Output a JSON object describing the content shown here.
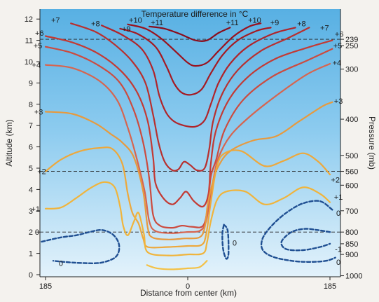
{
  "chart_data": {
    "type": "contour",
    "title": "Temperature difference in °C",
    "xlabel": "Distance from center (km)",
    "ylabel_left": "Altitude (km)",
    "ylabel_right": "Pressure (mb)",
    "x_ticks": [
      "185",
      "0",
      "185"
    ],
    "x_range_km": [
      -200,
      200
    ],
    "y_range_km": [
      0,
      12.5
    ],
    "y_ticks": [
      0,
      1,
      2,
      3,
      4,
      5,
      6,
      7,
      8,
      9,
      10,
      11,
      12
    ],
    "pressure_ticks": [
      {
        "mb": "239",
        "alt": 11.05
      },
      {
        "mb": "250",
        "alt": 10.75
      },
      {
        "mb": "300",
        "alt": 9.65
      },
      {
        "mb": "400",
        "alt": 7.3
      },
      {
        "mb": "500",
        "alt": 5.6
      },
      {
        "mb": "560",
        "alt": 4.85
      },
      {
        "mb": "600",
        "alt": 4.2
      },
      {
        "mb": "700",
        "alt": 3.0
      },
      {
        "mb": "800",
        "alt": 2.0
      },
      {
        "mb": "850",
        "alt": 1.45
      },
      {
        "mb": "900",
        "alt": 0.95
      },
      {
        "mb": "1000",
        "alt": -0.05
      }
    ],
    "reference_lines_alt": [
      11.05,
      4.85,
      2.0
    ],
    "contours": [
      {
        "level": "+11",
        "color": "#8a0d1c",
        "points": [
          [
            -50,
            11.65
          ],
          [
            -30,
            11.55
          ],
          [
            -10,
            11.3
          ],
          [
            10,
            11.0
          ],
          [
            25,
            11.0
          ],
          [
            40,
            11.35
          ],
          [
            55,
            11.6
          ]
        ]
      },
      {
        "level": "+10",
        "color": "#9a121e",
        "points": [
          [
            -78,
            11.75
          ],
          [
            -55,
            11.55
          ],
          [
            -35,
            11.1
          ],
          [
            -15,
            10.45
          ],
          [
            0,
            9.95
          ],
          [
            10,
            9.8
          ],
          [
            25,
            9.95
          ],
          [
            40,
            10.5
          ],
          [
            60,
            11.2
          ],
          [
            80,
            11.65
          ],
          [
            95,
            11.8
          ]
        ]
      },
      {
        "level": "+9",
        "color": "#a51a22",
        "points": [
          [
            -88,
            11.55
          ],
          [
            -65,
            11.3
          ],
          [
            -42,
            10.7
          ],
          [
            -28,
            9.8
          ],
          [
            -18,
            9.0
          ],
          [
            -8,
            8.55
          ],
          [
            5,
            8.45
          ],
          [
            18,
            8.7
          ],
          [
            30,
            9.45
          ],
          [
            45,
            10.3
          ],
          [
            65,
            11.0
          ],
          [
            90,
            11.45
          ],
          [
            108,
            11.6
          ]
        ]
      },
      {
        "level": "+8",
        "color": "#b0242a",
        "points": [
          [
            -112,
            11.7
          ],
          [
            -85,
            11.25
          ],
          [
            -60,
            10.6
          ],
          [
            -45,
            9.6
          ],
          [
            -37,
            8.4
          ],
          [
            -28,
            7.6
          ],
          [
            -18,
            7.2
          ],
          [
            -5,
            7.0
          ],
          [
            10,
            6.95
          ],
          [
            22,
            7.25
          ],
          [
            30,
            8.0
          ],
          [
            40,
            9.0
          ],
          [
            55,
            9.9
          ],
          [
            78,
            10.7
          ],
          [
            110,
            11.3
          ],
          [
            140,
            11.6
          ]
        ]
      },
      {
        "level": "+7",
        "color": "#b8302f",
        "points": [
          [
            -152,
            11.8
          ],
          [
            -120,
            11.4
          ],
          [
            -95,
            10.8
          ],
          [
            -72,
            10.0
          ],
          [
            -55,
            9.0
          ],
          [
            -45,
            7.5
          ],
          [
            -38,
            6.2
          ],
          [
            -30,
            5.3
          ],
          [
            -20,
            4.9
          ],
          [
            -12,
            4.95
          ],
          [
            -5,
            5.3
          ],
          [
            3,
            5.15
          ],
          [
            12,
            4.9
          ],
          [
            22,
            5.0
          ],
          [
            28,
            5.9
          ],
          [
            33,
            7.2
          ],
          [
            45,
            8.5
          ],
          [
            65,
            9.6
          ],
          [
            95,
            10.5
          ],
          [
            130,
            11.1
          ],
          [
            158,
            11.6
          ]
        ]
      },
      {
        "level": "+6",
        "color": "#c33a34",
        "points": [
          [
            -185,
            11.2
          ],
          [
            -150,
            10.9
          ],
          [
            -115,
            10.35
          ],
          [
            -85,
            9.5
          ],
          [
            -65,
            8.5
          ],
          [
            -52,
            7.2
          ],
          [
            -45,
            5.5
          ],
          [
            -42,
            4.3
          ],
          [
            -32,
            3.6
          ],
          [
            -20,
            3.3
          ],
          [
            -10,
            3.6
          ],
          [
            -2,
            3.9
          ],
          [
            8,
            3.45
          ],
          [
            20,
            3.2
          ],
          [
            27,
            3.8
          ],
          [
            30,
            5.2
          ],
          [
            37,
            6.8
          ],
          [
            55,
            8.3
          ],
          [
            82,
            9.4
          ],
          [
            115,
            10.15
          ],
          [
            155,
            10.65
          ],
          [
            188,
            11.0
          ]
        ]
      },
      {
        "level": "+5",
        "color": "#cc4b3f",
        "points": [
          [
            -185,
            10.7
          ],
          [
            -150,
            10.4
          ],
          [
            -115,
            9.8
          ],
          [
            -88,
            9.0
          ],
          [
            -70,
            7.7
          ],
          [
            -58,
            6.2
          ],
          [
            -50,
            4.5
          ],
          [
            -45,
            2.8
          ],
          [
            -36,
            2.3
          ],
          [
            -20,
            2.2
          ],
          [
            -8,
            2.3
          ],
          [
            5,
            2.25
          ],
          [
            20,
            2.3
          ],
          [
            26,
            3.2
          ],
          [
            30,
            4.6
          ],
          [
            37,
            5.4
          ],
          [
            48,
            6.8
          ],
          [
            72,
            8.2
          ],
          [
            110,
            9.3
          ],
          [
            155,
            10.05
          ],
          [
            188,
            10.6
          ]
        ]
      },
      {
        "level": "+4",
        "color": "#d66550",
        "points": [
          [
            -185,
            9.85
          ],
          [
            -150,
            9.7
          ],
          [
            -115,
            9.1
          ],
          [
            -92,
            8.2
          ],
          [
            -78,
            6.9
          ],
          [
            -66,
            5.4
          ],
          [
            -56,
            3.9
          ],
          [
            -50,
            2.5
          ],
          [
            -42,
            2.05
          ],
          [
            -22,
            1.95
          ],
          [
            -2,
            2.0
          ],
          [
            15,
            2.05
          ],
          [
            23,
            2.4
          ],
          [
            28,
            3.3
          ],
          [
            34,
            4.6
          ],
          [
            40,
            5.5
          ],
          [
            55,
            6.5
          ],
          [
            80,
            7.4
          ],
          [
            115,
            8.4
          ],
          [
            155,
            9.4
          ],
          [
            185,
            9.9
          ]
        ]
      },
      {
        "level": "+3",
        "color": "#e79a3e",
        "points": [
          [
            -185,
            7.65
          ],
          [
            -150,
            7.55
          ],
          [
            -120,
            7.1
          ],
          [
            -100,
            6.6
          ],
          [
            -85,
            6.2
          ],
          [
            -70,
            5.5
          ],
          [
            -58,
            3.9
          ],
          [
            -52,
            2.2
          ],
          [
            -46,
            1.75
          ],
          [
            -25,
            1.65
          ],
          [
            -5,
            1.7
          ],
          [
            15,
            1.75
          ],
          [
            22,
            2.2
          ],
          [
            26,
            3.3
          ],
          [
            33,
            4.4
          ],
          [
            40,
            5.1
          ],
          [
            55,
            5.8
          ],
          [
            85,
            6.3
          ],
          [
            115,
            6.5
          ],
          [
            145,
            7.2
          ],
          [
            175,
            7.9
          ],
          [
            188,
            8.1
          ]
        ]
      },
      {
        "level": "+2",
        "color": "#eda83c",
        "points": [
          [
            -185,
            4.85
          ],
          [
            -165,
            5.4
          ],
          [
            -140,
            5.8
          ],
          [
            -115,
            5.95
          ],
          [
            -98,
            5.9
          ],
          [
            -85,
            5.2
          ],
          [
            -78,
            3.8
          ],
          [
            -72,
            2.9
          ],
          [
            -64,
            2.4
          ],
          [
            -58,
            1.7
          ],
          [
            -52,
            1.3
          ],
          [
            -25,
            1.3
          ],
          [
            0,
            1.35
          ],
          [
            18,
            1.4
          ],
          [
            24,
            1.9
          ],
          [
            30,
            3.4
          ],
          [
            38,
            5.1
          ],
          [
            48,
            5.7
          ],
          [
            70,
            5.8
          ],
          [
            100,
            5.1
          ],
          [
            125,
            5.35
          ],
          [
            150,
            5.7
          ],
          [
            170,
            5.3
          ],
          [
            185,
            4.7
          ]
        ]
      },
      {
        "level": "+1",
        "color": "#f0b43c",
        "points": [
          [
            -185,
            3.1
          ],
          [
            -165,
            3.15
          ],
          [
            -145,
            3.6
          ],
          [
            -125,
            4.1
          ],
          [
            -108,
            4.35
          ],
          [
            -95,
            4.1
          ],
          [
            -88,
            3.2
          ],
          [
            -84,
            2.3
          ],
          [
            -78,
            1.85
          ],
          [
            -70,
            2.5
          ],
          [
            -64,
            2.9
          ],
          [
            -57,
            1.9
          ],
          [
            -52,
            1.05
          ],
          [
            -25,
            0.9
          ],
          [
            0,
            0.95
          ],
          [
            20,
            1.0
          ],
          [
            25,
            1.5
          ],
          [
            30,
            2.5
          ],
          [
            38,
            3.5
          ],
          [
            50,
            3.9
          ],
          [
            75,
            3.9
          ],
          [
            100,
            3.3
          ],
          [
            125,
            3.6
          ],
          [
            150,
            4.1
          ],
          [
            172,
            3.8
          ],
          [
            185,
            3.4
          ]
        ]
      },
      {
        "level": "0",
        "color": "#f4c145",
        "points": [
          [
            -53,
            0.45
          ],
          [
            -40,
            0.3
          ],
          [
            -20,
            0.25
          ],
          [
            0,
            0.3
          ],
          [
            15,
            0.35
          ],
          [
            25,
            0.65
          ]
        ]
      },
      {
        "level": "0",
        "color": "#1f4f92",
        "dashed": true,
        "points": [
          [
            -190,
            1.55
          ],
          [
            -165,
            1.75
          ],
          [
            -145,
            1.85
          ],
          [
            -128,
            2.0
          ],
          [
            -112,
            2.1
          ],
          [
            -98,
            1.9
          ],
          [
            -90,
            1.5
          ],
          [
            -90,
            1.05
          ],
          [
            -97,
            0.75
          ],
          [
            -115,
            0.55
          ],
          [
            -140,
            0.55
          ],
          [
            -160,
            0.6
          ],
          [
            -175,
            0.65
          ]
        ]
      },
      {
        "level": "0",
        "color": "#1f4f92",
        "dashed": true,
        "points": [
          [
            47,
            2.35
          ],
          [
            52,
            2.05
          ],
          [
            53,
            1.0
          ],
          [
            50,
            0.75
          ],
          [
            46,
            1.2
          ],
          [
            45,
            1.9
          ],
          [
            47,
            2.35
          ]
        ]
      },
      {
        "level": "0",
        "color": "#1f4f92",
        "dashed": true,
        "points": [
          [
            188,
            3.05
          ],
          [
            172,
            3.45
          ],
          [
            150,
            3.35
          ],
          [
            130,
            2.95
          ],
          [
            112,
            2.4
          ],
          [
            98,
            1.75
          ],
          [
            97,
            1.2
          ],
          [
            110,
            0.85
          ],
          [
            135,
            0.65
          ],
          [
            158,
            0.6
          ],
          [
            180,
            0.65
          ],
          [
            192,
            0.8
          ]
        ]
      },
      {
        "level": "-1",
        "color": "#1f4f92",
        "dashed": true,
        "points": [
          [
            185,
            2.0
          ],
          [
            168,
            2.1
          ],
          [
            152,
            2.15
          ],
          [
            135,
            2.0
          ],
          [
            122,
            1.55
          ],
          [
            128,
            1.2
          ],
          [
            150,
            1.15
          ],
          [
            172,
            1.3
          ],
          [
            185,
            1.45
          ]
        ]
      }
    ],
    "contour_labels": [
      {
        "text": "+11",
        "x": -40,
        "y": 11.85
      },
      {
        "text": "+11",
        "x": 58,
        "y": 11.85
      },
      {
        "text": "+10",
        "x": -68,
        "y": 11.95
      },
      {
        "text": "+10",
        "x": 87,
        "y": 11.95
      },
      {
        "text": "+9",
        "x": -80,
        "y": 11.55
      },
      {
        "text": "+9",
        "x": 113,
        "y": 11.85
      },
      {
        "text": "+8",
        "x": -120,
        "y": 11.8
      },
      {
        "text": "+8",
        "x": 148,
        "y": 11.8
      },
      {
        "text": "+7",
        "x": -172,
        "y": 11.95
      },
      {
        "text": "+7",
        "x": 178,
        "y": 11.6
      },
      {
        "text": "+6",
        "x": -193,
        "y": 11.35
      },
      {
        "text": "+6",
        "x": 197,
        "y": 11.3
      },
      {
        "text": "+5",
        "x": -195,
        "y": 10.75
      },
      {
        "text": "+5",
        "x": 195,
        "y": 10.75
      },
      {
        "text": "+4",
        "x": -197,
        "y": 9.85
      },
      {
        "text": "+4",
        "x": 194,
        "y": 9.95
      },
      {
        "text": "+3",
        "x": -194,
        "y": 7.65
      },
      {
        "text": "+3",
        "x": 196,
        "y": 8.15
      },
      {
        "text": "+2",
        "x": -190,
        "y": 4.85
      },
      {
        "text": "+2",
        "x": 192,
        "y": 4.45
      },
      {
        "text": "+1",
        "x": -198,
        "y": 3.1
      },
      {
        "text": "+1",
        "x": 196,
        "y": 3.65
      },
      {
        "text": "0",
        "x": -196,
        "y": 2.0
      },
      {
        "text": "0",
        "x": -165,
        "y": 0.55
      },
      {
        "text": "0",
        "x": 61,
        "y": 1.5
      },
      {
        "text": "0",
        "x": 196,
        "y": 2.9
      },
      {
        "text": "-1",
        "x": 196,
        "y": 1.2
      },
      {
        "text": "0",
        "x": 196,
        "y": 0.6
      }
    ]
  }
}
